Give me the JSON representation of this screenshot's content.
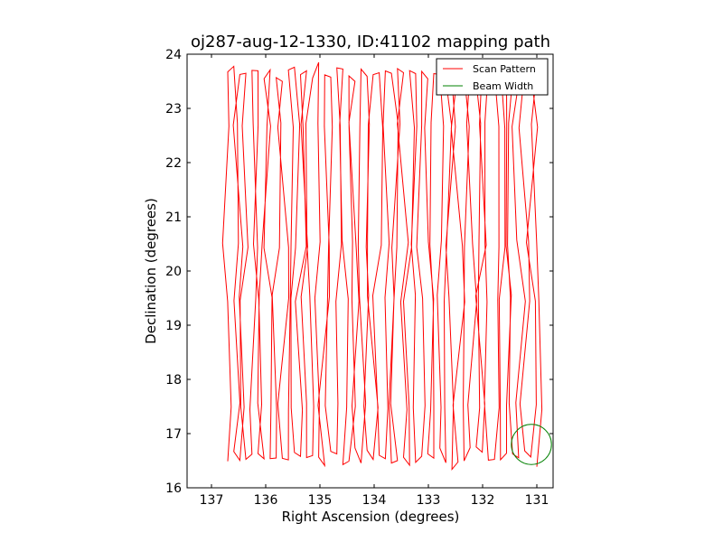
{
  "chart_data": {
    "type": "line",
    "title": "oj287-aug-12-1330, ID:41102 mapping path",
    "xlabel": "Right Ascension (degrees)",
    "ylabel": "Declination (degrees)",
    "xlim": [
      137.45,
      130.7
    ],
    "ylim": [
      16,
      24
    ],
    "x_reversed": true,
    "x_ticks": [
      137,
      136,
      135,
      134,
      133,
      132,
      131
    ],
    "y_ticks": [
      16,
      17,
      18,
      19,
      20,
      21,
      22,
      23,
      24
    ],
    "grid": false,
    "legend_position": "top-right",
    "series": [
      {
        "name": "Scan Pattern",
        "color": "#ff0000",
        "pattern": {
          "ra_start": 136.7,
          "ra_end": 131.0,
          "leg_count": 52,
          "dec_min": 16.4,
          "dec_max": 23.8,
          "turn_declinations": [
            17.5,
            19.5,
            20.5,
            22.7
          ]
        }
      },
      {
        "name": "Beam Width",
        "color": "#008000",
        "shape": "circle",
        "center": [
          131.1,
          16.8
        ],
        "radius_deg": 0.37
      }
    ]
  }
}
